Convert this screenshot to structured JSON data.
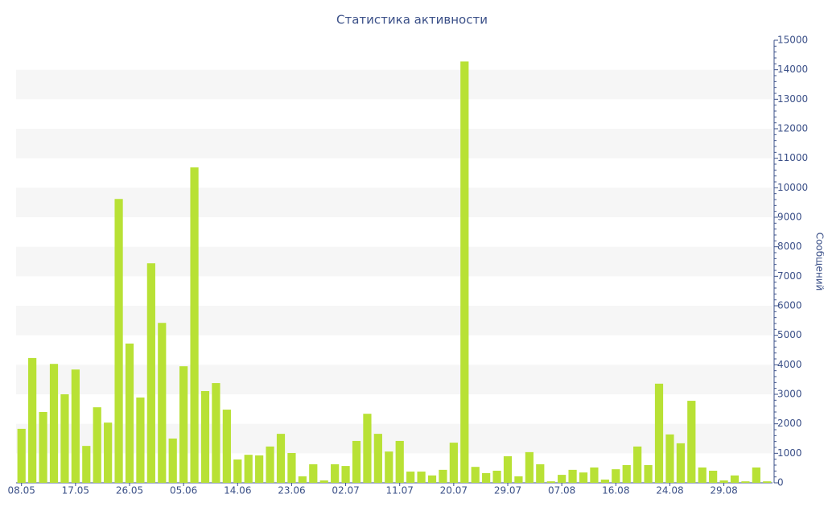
{
  "chart_data": {
    "type": "bar",
    "title": "Статистика активности",
    "y_label": "Сообщений",
    "y_axis_side": "right",
    "grid": "alternate-bands",
    "color": "#b8e135",
    "categories": [
      "08.05",
      null,
      null,
      null,
      null,
      "17.05",
      null,
      null,
      null,
      null,
      "26.05",
      null,
      null,
      null,
      null,
      "05.06",
      null,
      null,
      null,
      null,
      "14.06",
      null,
      null,
      null,
      null,
      "23.06",
      null,
      null,
      null,
      null,
      "02.07",
      null,
      null,
      null,
      null,
      "11.07",
      null,
      null,
      null,
      null,
      "20.07",
      null,
      null,
      null,
      null,
      "29.07",
      null,
      null,
      null,
      null,
      "07.08",
      null,
      null,
      null,
      null,
      "16.08",
      null,
      null,
      null,
      null,
      "24.08",
      null,
      null,
      null,
      null,
      "29.08",
      null,
      null,
      null,
      null
    ],
    "values": [
      1830,
      4230,
      2400,
      4030,
      3000,
      3840,
      1250,
      2560,
      2040,
      9620,
      4720,
      2890,
      7440,
      5420,
      1500,
      3950,
      10690,
      3110,
      3380,
      2480,
      790,
      950,
      930,
      1230,
      1660,
      1010,
      220,
      630,
      80,
      630,
      570,
      1420,
      2340,
      1660,
      1060,
      1420,
      380,
      380,
      250,
      440,
      1360,
      14280,
      540,
      330,
      410,
      900,
      220,
      1040,
      630,
      50,
      270,
      440,
      350,
      520,
      110,
      460,
      600,
      1230,
      600,
      3360,
      1640,
      1340,
      2780,
      520,
      410,
      80,
      250,
      50,
      520,
      50
    ],
    "ylim": [
      0,
      15000
    ],
    "yticks": [
      0,
      1000,
      2000,
      3000,
      4000,
      5000,
      6000,
      7000,
      8000,
      9000,
      10000,
      11000,
      12000,
      13000,
      14000,
      15000
    ]
  }
}
